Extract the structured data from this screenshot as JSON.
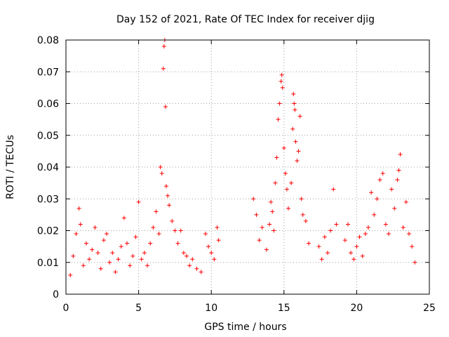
{
  "chart_data": {
    "type": "scatter",
    "title": "Day 152 of 2021, Rate Of TEC Index for receiver djig",
    "xlabel": "GPS time / hours",
    "ylabel": "ROTI / TECUs",
    "xlim": [
      0,
      25
    ],
    "ylim": [
      0,
      0.08
    ],
    "grid": true,
    "xticks": [
      0,
      5,
      10,
      15,
      20,
      25
    ],
    "xtick_labels": [
      "0",
      "5",
      "10",
      "15",
      "20",
      "25"
    ],
    "yticks": [
      0,
      0.01,
      0.02,
      0.03,
      0.04,
      0.05,
      0.06,
      0.07,
      0.08
    ],
    "ytick_labels": [
      "0",
      "0.01",
      "0.02",
      "0.03",
      "0.04",
      "0.05",
      "0.06",
      "0.07",
      "0.08"
    ],
    "marker": "+",
    "color": "#ff0000",
    "series": [
      {
        "name": "ROTI",
        "points": [
          [
            0.3,
            0.006
          ],
          [
            0.5,
            0.012
          ],
          [
            0.7,
            0.019
          ],
          [
            0.9,
            0.027
          ],
          [
            1.0,
            0.022
          ],
          [
            1.2,
            0.009
          ],
          [
            1.4,
            0.016
          ],
          [
            1.6,
            0.011
          ],
          [
            1.8,
            0.014
          ],
          [
            2.0,
            0.021
          ],
          [
            2.2,
            0.013
          ],
          [
            2.4,
            0.008
          ],
          [
            2.6,
            0.017
          ],
          [
            2.8,
            0.019
          ],
          [
            3.0,
            0.01
          ],
          [
            3.2,
            0.013
          ],
          [
            3.4,
            0.007
          ],
          [
            3.6,
            0.011
          ],
          [
            3.8,
            0.015
          ],
          [
            4.0,
            0.024
          ],
          [
            4.2,
            0.016
          ],
          [
            4.4,
            0.009
          ],
          [
            4.6,
            0.012
          ],
          [
            4.8,
            0.018
          ],
          [
            5.0,
            0.029
          ],
          [
            5.2,
            0.011
          ],
          [
            5.4,
            0.013
          ],
          [
            5.6,
            0.009
          ],
          [
            5.8,
            0.016
          ],
          [
            6.0,
            0.021
          ],
          [
            6.2,
            0.026
          ],
          [
            6.4,
            0.019
          ],
          [
            6.5,
            0.04
          ],
          [
            6.6,
            0.038
          ],
          [
            6.7,
            0.071
          ],
          [
            6.75,
            0.078
          ],
          [
            6.8,
            0.08
          ],
          [
            6.85,
            0.059
          ],
          [
            6.9,
            0.034
          ],
          [
            7.0,
            0.031
          ],
          [
            7.1,
            0.028
          ],
          [
            7.3,
            0.023
          ],
          [
            7.5,
            0.02
          ],
          [
            7.7,
            0.016
          ],
          [
            7.9,
            0.02
          ],
          [
            8.1,
            0.013
          ],
          [
            8.3,
            0.012
          ],
          [
            8.5,
            0.009
          ],
          [
            8.7,
            0.011
          ],
          [
            9.0,
            0.008
          ],
          [
            9.3,
            0.007
          ],
          [
            9.6,
            0.019
          ],
          [
            9.8,
            0.015
          ],
          [
            10.0,
            0.013
          ],
          [
            10.2,
            0.011
          ],
          [
            10.4,
            0.021
          ],
          [
            10.5,
            0.017
          ],
          [
            12.9,
            0.03
          ],
          [
            13.1,
            0.025
          ],
          [
            13.3,
            0.017
          ],
          [
            13.5,
            0.021
          ],
          [
            13.8,
            0.014
          ],
          [
            14.0,
            0.022
          ],
          [
            14.1,
            0.029
          ],
          [
            14.2,
            0.026
          ],
          [
            14.3,
            0.02
          ],
          [
            14.4,
            0.035
          ],
          [
            14.5,
            0.043
          ],
          [
            14.6,
            0.055
          ],
          [
            14.7,
            0.06
          ],
          [
            14.8,
            0.067
          ],
          [
            14.85,
            0.069
          ],
          [
            14.9,
            0.065
          ],
          [
            15.0,
            0.046
          ],
          [
            15.1,
            0.038
          ],
          [
            15.2,
            0.033
          ],
          [
            15.3,
            0.027
          ],
          [
            15.5,
            0.035
          ],
          [
            15.6,
            0.052
          ],
          [
            15.65,
            0.063
          ],
          [
            15.7,
            0.06
          ],
          [
            15.75,
            0.058
          ],
          [
            15.8,
            0.048
          ],
          [
            15.9,
            0.042
          ],
          [
            16.0,
            0.045
          ],
          [
            16.1,
            0.056
          ],
          [
            16.2,
            0.03
          ],
          [
            16.3,
            0.025
          ],
          [
            16.5,
            0.023
          ],
          [
            16.7,
            0.016
          ],
          [
            17.4,
            0.015
          ],
          [
            17.6,
            0.011
          ],
          [
            17.8,
            0.018
          ],
          [
            18.0,
            0.013
          ],
          [
            18.2,
            0.02
          ],
          [
            18.4,
            0.033
          ],
          [
            18.6,
            0.022
          ],
          [
            19.2,
            0.017
          ],
          [
            19.4,
            0.022
          ],
          [
            19.6,
            0.013
          ],
          [
            19.8,
            0.011
          ],
          [
            20.0,
            0.015
          ],
          [
            20.2,
            0.018
          ],
          [
            20.4,
            0.012
          ],
          [
            20.6,
            0.019
          ],
          [
            20.8,
            0.021
          ],
          [
            21.0,
            0.032
          ],
          [
            21.2,
            0.025
          ],
          [
            21.4,
            0.03
          ],
          [
            21.6,
            0.036
          ],
          [
            21.8,
            0.038
          ],
          [
            22.0,
            0.022
          ],
          [
            22.2,
            0.019
          ],
          [
            22.4,
            0.033
          ],
          [
            22.6,
            0.027
          ],
          [
            22.8,
            0.036
          ],
          [
            22.9,
            0.039
          ],
          [
            23.0,
            0.044
          ],
          [
            23.2,
            0.021
          ],
          [
            23.4,
            0.029
          ],
          [
            23.6,
            0.019
          ],
          [
            23.8,
            0.015
          ],
          [
            24.0,
            0.01
          ]
        ]
      }
    ]
  }
}
